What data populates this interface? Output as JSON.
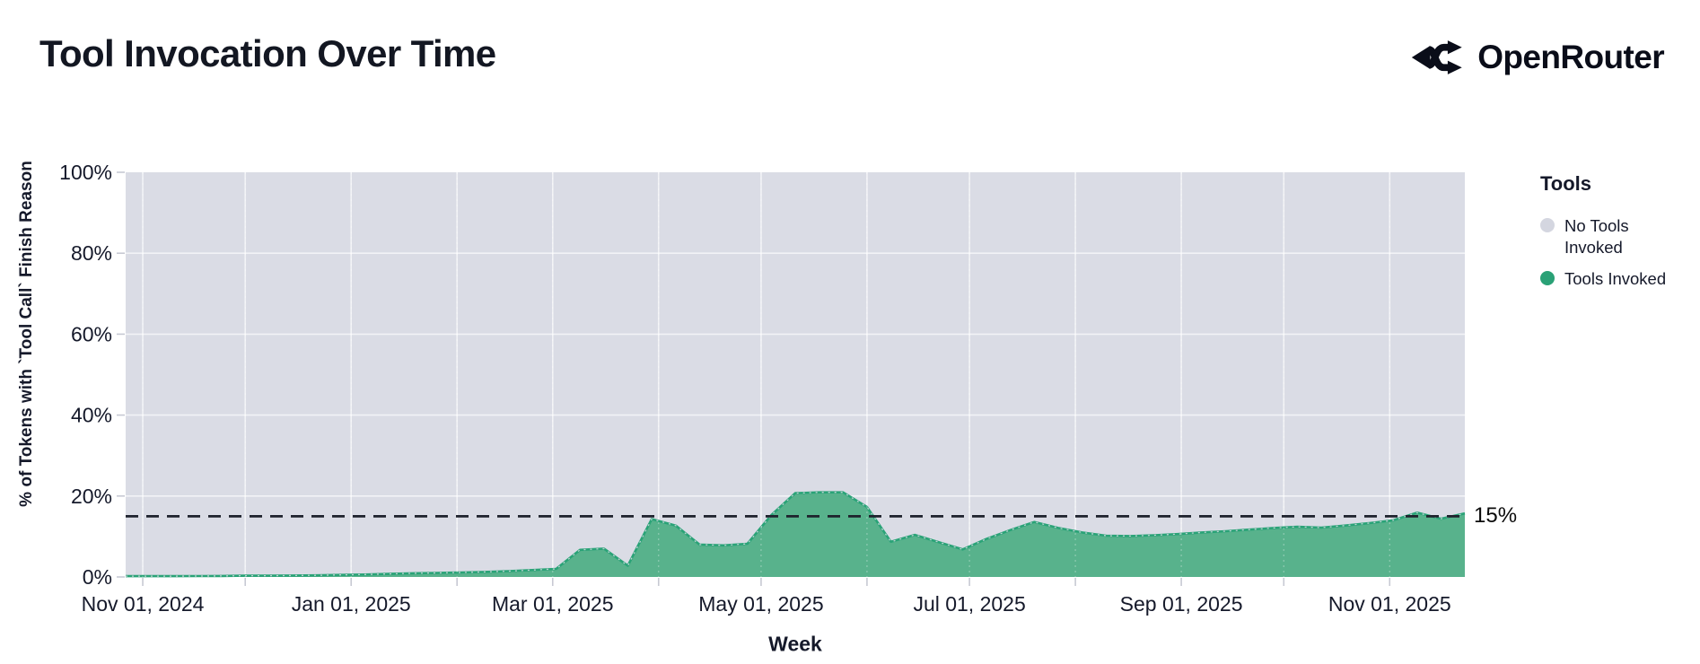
{
  "page": {
    "title": "Tool Invocation Over Time",
    "brand": "OpenRouter"
  },
  "chart_data": {
    "type": "area",
    "stacked": true,
    "title": "Tool Invocation Over Time",
    "xlabel": "Week",
    "ylabel": "% of Tokens with `Tool Call` Finish Reason",
    "ylim": [
      0,
      100
    ],
    "grid": true,
    "plot_bg": "#dadce5",
    "x_range": [
      "2024-10-27",
      "2025-11-23"
    ],
    "x": [
      "2024-10-27",
      "2024-11-03",
      "2024-11-10",
      "2024-11-17",
      "2024-11-24",
      "2024-12-01",
      "2024-12-08",
      "2024-12-15",
      "2024-12-22",
      "2024-12-29",
      "2025-01-05",
      "2025-01-12",
      "2025-01-19",
      "2025-01-26",
      "2025-02-02",
      "2025-02-09",
      "2025-02-16",
      "2025-02-23",
      "2025-03-02",
      "2025-03-09",
      "2025-03-16",
      "2025-03-23",
      "2025-03-30",
      "2025-04-06",
      "2025-04-13",
      "2025-04-20",
      "2025-04-27",
      "2025-05-04",
      "2025-05-11",
      "2025-05-18",
      "2025-05-25",
      "2025-06-01",
      "2025-06-08",
      "2025-06-15",
      "2025-06-22",
      "2025-06-29",
      "2025-07-06",
      "2025-07-13",
      "2025-07-20",
      "2025-07-27",
      "2025-08-03",
      "2025-08-10",
      "2025-08-17",
      "2025-08-24",
      "2025-08-31",
      "2025-09-07",
      "2025-09-14",
      "2025-09-21",
      "2025-09-28",
      "2025-10-05",
      "2025-10-12",
      "2025-10-19",
      "2025-10-26",
      "2025-11-02",
      "2025-11-09",
      "2025-11-16",
      "2025-11-23"
    ],
    "series": [
      {
        "name": "Tools Invoked",
        "line_color": "#2aa377",
        "fill_color": "#58b28c",
        "values": [
          0.2,
          0.2,
          0.2,
          0.22,
          0.25,
          0.3,
          0.3,
          0.35,
          0.4,
          0.5,
          0.6,
          0.75,
          0.9,
          1.0,
          1.1,
          1.25,
          1.45,
          1.7,
          2.0,
          6.7,
          7.0,
          2.8,
          14.3,
          12.7,
          8.0,
          7.8,
          8.2,
          15.3,
          20.7,
          20.9,
          20.9,
          17.3,
          8.7,
          10.4,
          8.6,
          6.8,
          9.4,
          11.6,
          13.6,
          12.1,
          11.0,
          10.2,
          10.1,
          10.3,
          10.6,
          11.0,
          11.3,
          11.7,
          12.1,
          12.4,
          12.2,
          12.7,
          13.3,
          14.0,
          15.9,
          14.4,
          15.7
        ]
      },
      {
        "name": "No Tools Invoked",
        "fill_color": "#dadce5",
        "values_note": "stacked remainder to 100% of each week"
      }
    ],
    "y_ticks": [
      {
        "value": 0,
        "label": "0%"
      },
      {
        "value": 20,
        "label": "20%"
      },
      {
        "value": 40,
        "label": "40%"
      },
      {
        "value": 60,
        "label": "60%"
      },
      {
        "value": 80,
        "label": "80%"
      },
      {
        "value": 100,
        "label": "100%"
      }
    ],
    "x_ticks": [
      {
        "date": "2024-11-01",
        "label": "Nov 01, 2024"
      },
      {
        "date": "2024-12-01",
        "label": ""
      },
      {
        "date": "2025-01-01",
        "label": "Jan 01, 2025"
      },
      {
        "date": "2025-02-01",
        "label": ""
      },
      {
        "date": "2025-03-01",
        "label": "Mar 01, 2025"
      },
      {
        "date": "2025-04-01",
        "label": ""
      },
      {
        "date": "2025-05-01",
        "label": "May 01, 2025"
      },
      {
        "date": "2025-06-01",
        "label": ""
      },
      {
        "date": "2025-07-01",
        "label": "Jul 01, 2025"
      },
      {
        "date": "2025-08-01",
        "label": ""
      },
      {
        "date": "2025-09-01",
        "label": "Sep 01, 2025"
      },
      {
        "date": "2025-10-01",
        "label": ""
      },
      {
        "date": "2025-11-01",
        "label": "Nov 01, 2025"
      }
    ],
    "ref_line": {
      "value": 15,
      "label": "15%",
      "color": "#1e222d",
      "style": "dashed"
    },
    "legend": {
      "title": "Tools",
      "position": "right",
      "items": [
        {
          "label": "No Tools Invoked",
          "color": "#d4d6e0"
        },
        {
          "label": "Tools Invoked",
          "color": "#2aa176"
        }
      ]
    },
    "colors": {
      "text": "#15192a",
      "tick": "#c7c9d3",
      "gridline": "rgba(255,255,255,0.65)"
    }
  }
}
